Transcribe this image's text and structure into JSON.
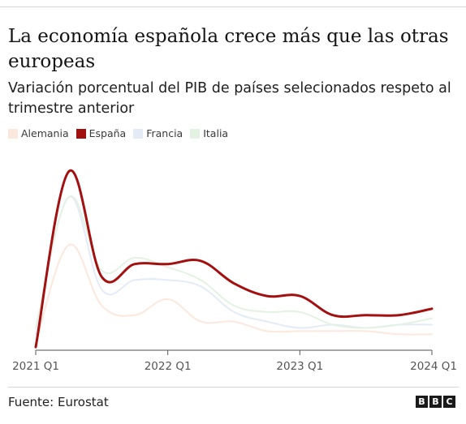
{
  "title": "La economía española crece más que las otras europeas",
  "subtitle": "Variación porcentual del PIB de países selecionados respeto al trimestre anterior",
  "source": "Fuente: Eurostat",
  "logo": [
    "B",
    "B",
    "C"
  ],
  "chart_data": {
    "type": "line",
    "x_range": [
      "2021 Q1",
      "2024 Q1"
    ],
    "x": [
      "2021 Q1",
      "2021 Q2",
      "2021 Q3",
      "2021 Q4",
      "2022 Q1",
      "2022 Q2",
      "2022 Q3",
      "2022 Q4",
      "2023 Q1",
      "2023 Q2",
      "2023 Q3",
      "2023 Q4",
      "2024 Q1"
    ],
    "x_ticks": [
      "2021 Q1",
      "2022 Q1",
      "2023 Q1",
      "2024 Q1"
    ],
    "y_axis_shown": false,
    "ylim": [
      -0.6,
      5.6
    ],
    "grid": false,
    "legend_placement": "top-left",
    "series": [
      {
        "name": "Alemania",
        "color": "#fce8dc",
        "emphasized": false,
        "values": [
          -0.4,
          2.7,
          0.8,
          0.5,
          1.0,
          0.3,
          0.3,
          0.0,
          0.0,
          0.0,
          0.0,
          -0.1,
          -0.1
        ]
      },
      {
        "name": "España",
        "color": "#a31010",
        "emphasized": true,
        "values": [
          -0.5,
          5.0,
          1.7,
          2.1,
          2.1,
          2.2,
          1.5,
          1.1,
          1.1,
          0.5,
          0.5,
          0.5,
          0.7
        ]
      },
      {
        "name": "Francia",
        "color": "#e3ecf6",
        "emphasized": false,
        "values": [
          -0.1,
          4.2,
          1.3,
          1.6,
          1.6,
          1.4,
          0.6,
          0.3,
          0.1,
          0.2,
          0.1,
          0.2,
          0.2
        ]
      },
      {
        "name": "Italia",
        "color": "#e3f2e3",
        "emphasized": false,
        "values": [
          0.1,
          4.2,
          1.9,
          2.3,
          2.0,
          1.6,
          0.8,
          0.6,
          0.6,
          0.2,
          0.1,
          0.2,
          0.4
        ]
      }
    ]
  }
}
